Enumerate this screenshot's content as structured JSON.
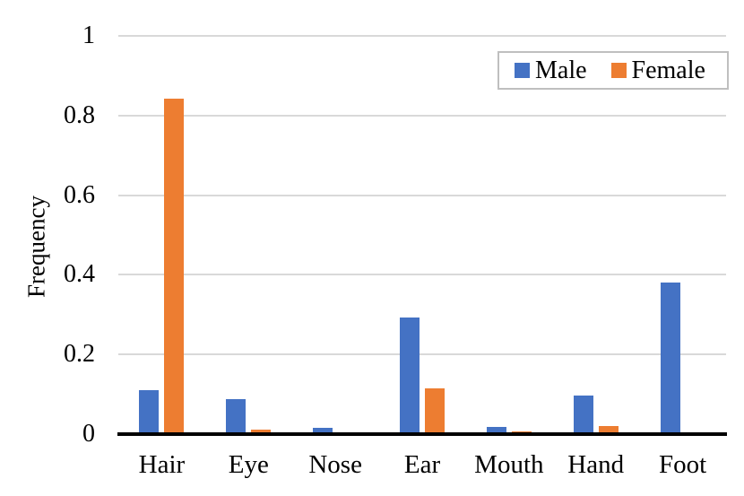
{
  "chart_data": {
    "type": "bar",
    "title": "",
    "xlabel": "",
    "ylabel": "Frequency",
    "categories": [
      "Hair",
      "Eye",
      "Nose",
      "Ear",
      "Mouth",
      "Hand",
      "Foot"
    ],
    "series": [
      {
        "name": "Male",
        "color": "#4472C4",
        "values": [
          0.11,
          0.088,
          0.015,
          0.293,
          0.018,
          0.098,
          0.381
        ]
      },
      {
        "name": "Female",
        "color": "#ED7D31",
        "values": [
          0.842,
          0.011,
          0.004,
          0.114,
          0.006,
          0.02,
          0.0
        ]
      }
    ],
    "ylim": [
      0,
      1
    ],
    "yticks": [
      0,
      0.2,
      0.4,
      0.6,
      0.8,
      1
    ],
    "ytick_labels": [
      "0",
      "0.2",
      "0.4",
      "0.6",
      "0.8",
      "1"
    ],
    "grid": true,
    "legend_position": "top-right",
    "colors": {
      "gridline": "#D9D9D9",
      "axis_line": "#000000",
      "legend_border": "#BFBFBF",
      "text": "#000000"
    }
  }
}
